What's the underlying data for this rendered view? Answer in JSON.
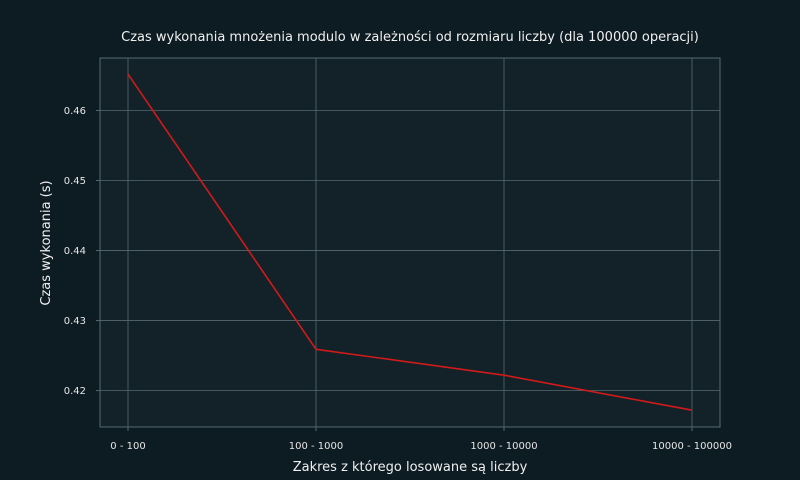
{
  "chart_data": {
    "type": "line",
    "title": "Czas wykonania mnożenia modulo w zależności od rozmiaru liczby (dla 100000 operacji)",
    "xlabel": "Zakres z którego losowane są liczby",
    "ylabel": "Czas wykonania (s)",
    "categories": [
      "0 - 100",
      "100 - 1000",
      "1000 - 10000",
      "10000 - 100000"
    ],
    "series": [
      {
        "values": [
          0.4652,
          0.4259,
          0.4222,
          0.4172
        ],
        "color": "#d11a1a"
      }
    ],
    "ylim": [
      0.4148,
      0.4675
    ],
    "yticks": [
      0.42,
      0.43,
      0.44,
      0.45,
      0.46
    ],
    "ytick_labels": [
      "0.42",
      "0.43",
      "0.44",
      "0.45",
      "0.46"
    ],
    "grid": true,
    "colors": {
      "background": "#0d1b22",
      "plot_background": "#132229",
      "grid": "#566a72",
      "spine": "#566a72",
      "text": "#f0f0f0"
    }
  }
}
